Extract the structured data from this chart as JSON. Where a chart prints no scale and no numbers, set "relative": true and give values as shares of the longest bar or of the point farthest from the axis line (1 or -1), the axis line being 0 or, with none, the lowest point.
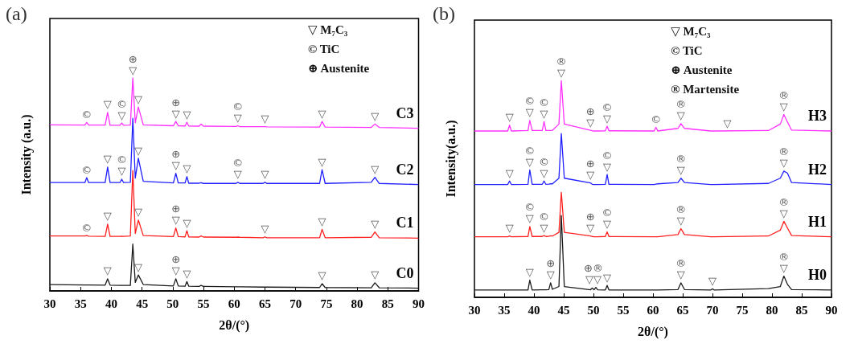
{
  "chart_data": [
    {
      "type": "line",
      "title": "(a)",
      "xlabel": "2θ/(°)",
      "ylabel": "Intensity (a.u.)",
      "relative": true,
      "marker": "none",
      "tick_labels": "x",
      "xlim": [
        30,
        90
      ],
      "xticks": [
        30,
        35,
        40,
        45,
        50,
        55,
        60,
        65,
        70,
        75,
        80,
        85,
        90
      ],
      "x": [
        30,
        35.7,
        36.0,
        36.3,
        39.0,
        39.4,
        39.8,
        41.4,
        41.7,
        42.0,
        43.1,
        43.5,
        43.9,
        44.4,
        45.2,
        50.1,
        50.5,
        50.9,
        52.0,
        52.3,
        52.6,
        54.3,
        54.6,
        55.0,
        60.3,
        60.6,
        60.9,
        64.7,
        65.0,
        65.3,
        73.9,
        74.3,
        74.8,
        82.3,
        82.9,
        83.6,
        90
      ],
      "series": [
        {
          "name": "C0",
          "color": "#1a1a1a",
          "values": [
            0.03,
            0.028,
            0.028,
            0.028,
            0.027,
            0.057,
            0.027,
            0.026,
            0.026,
            0.026,
            0.026,
            0.22,
            0.04,
            0.075,
            0.03,
            0.023,
            0.057,
            0.023,
            0.022,
            0.044,
            0.022,
            0.021,
            0.026,
            0.021,
            0.019,
            0.019,
            0.019,
            0.018,
            0.018,
            0.018,
            0.016,
            0.034,
            0.016,
            0.015,
            0.038,
            0.015,
            0.013
          ]
        },
        {
          "name": "C1",
          "color": "#ff2020",
          "values": [
            0.258,
            0.258,
            0.26,
            0.257,
            0.256,
            0.314,
            0.256,
            0.256,
            0.257,
            0.256,
            0.258,
            0.566,
            0.27,
            0.333,
            0.26,
            0.255,
            0.296,
            0.255,
            0.254,
            0.283,
            0.254,
            0.253,
            0.258,
            0.253,
            0.252,
            0.253,
            0.252,
            0.25,
            0.254,
            0.25,
            0.25,
            0.289,
            0.25,
            0.252,
            0.277,
            0.25,
            0.248
          ]
        },
        {
          "name": "C2",
          "color": "#2020ff",
          "values": [
            0.509,
            0.509,
            0.532,
            0.509,
            0.509,
            0.582,
            0.509,
            0.509,
            0.525,
            0.509,
            0.51,
            0.811,
            0.53,
            0.623,
            0.515,
            0.507,
            0.553,
            0.507,
            0.507,
            0.537,
            0.506,
            0.506,
            0.508,
            0.505,
            0.505,
            0.51,
            0.505,
            0.505,
            0.51,
            0.505,
            0.505,
            0.57,
            0.505,
            0.51,
            0.534,
            0.505,
            0.5
          ]
        },
        {
          "name": "C3",
          "color": "#ff30ff",
          "values": [
            0.78,
            0.779,
            0.792,
            0.779,
            0.779,
            0.839,
            0.778,
            0.778,
            0.789,
            0.778,
            0.779,
            1.0,
            0.79,
            0.864,
            0.78,
            0.776,
            0.796,
            0.776,
            0.775,
            0.792,
            0.775,
            0.774,
            0.784,
            0.774,
            0.773,
            0.776,
            0.772,
            0.772,
            0.772,
            0.771,
            0.77,
            0.796,
            0.77,
            0.768,
            0.784,
            0.768,
            0.764
          ]
        }
      ],
      "annotations": [
        "▽ M₇C₃",
        "© TiC",
        "⊕ Austenite",
        {
          "text": "©",
          "x": 36.0,
          "y": 0.792
        },
        {
          "text": "▽",
          "x": 39.4,
          "y": 0.839
        },
        {
          "text": "©\n▽",
          "x": 41.7,
          "y": 0.789
        },
        {
          "text": "⊕\n▽",
          "x": 43.5,
          "y": 1.0
        },
        {
          "text": "▽",
          "x": 44.4,
          "y": 0.864
        },
        {
          "text": "⊕\n▽",
          "x": 50.5,
          "y": 0.796
        },
        {
          "text": "▽",
          "x": 52.3,
          "y": 0.792
        },
        {
          "text": "©\n▽",
          "x": 60.6,
          "y": 0.776
        },
        {
          "text": "▽",
          "x": 65.0,
          "y": 0.772
        },
        {
          "text": "▽",
          "x": 74.3,
          "y": 0.796
        },
        {
          "text": "▽",
          "x": 82.9,
          "y": 0.784
        },
        {
          "text": "©",
          "x": 36.0,
          "y": 0.532
        },
        {
          "text": "▽",
          "x": 39.4,
          "y": 0.582
        },
        {
          "text": "©\n▽",
          "x": 41.7,
          "y": 0.525
        },
        {
          "text": "▽",
          "x": 44.4,
          "y": 0.623
        },
        {
          "text": "⊕\n▽",
          "x": 50.5,
          "y": 0.553
        },
        {
          "text": "▽",
          "x": 52.3,
          "y": 0.537
        },
        {
          "text": "©\n▽",
          "x": 60.6,
          "y": 0.51
        },
        {
          "text": "▽",
          "x": 65.0,
          "y": 0.51
        },
        {
          "text": "▽",
          "x": 74.3,
          "y": 0.57
        },
        {
          "text": "▽",
          "x": 82.9,
          "y": 0.534
        },
        {
          "text": "©",
          "x": 36.0,
          "y": 0.26
        },
        {
          "text": "▽",
          "x": 39.4,
          "y": 0.314
        },
        {
          "text": "▽",
          "x": 44.4,
          "y": 0.333
        },
        {
          "text": "⊕\n▽",
          "x": 50.5,
          "y": 0.296
        },
        {
          "text": "▽",
          "x": 52.3,
          "y": 0.283
        },
        {
          "text": "▽",
          "x": 65.0,
          "y": 0.254
        },
        {
          "text": "▽",
          "x": 74.3,
          "y": 0.289
        },
        {
          "text": "▽",
          "x": 82.9,
          "y": 0.277
        },
        {
          "text": "▽",
          "x": 39.4,
          "y": 0.057
        },
        {
          "text": "▽",
          "x": 44.4,
          "y": 0.075
        },
        {
          "text": "⊕\n▽",
          "x": 50.5,
          "y": 0.057
        },
        {
          "text": "▽",
          "x": 52.3,
          "y": 0.044
        },
        {
          "text": "▽",
          "x": 74.3,
          "y": 0.034
        },
        {
          "text": "▽",
          "x": 82.9,
          "y": 0.038
        }
      ]
    },
    {
      "type": "line",
      "title": "(b)",
      "xlabel": "2θ/(°)",
      "ylabel": "Intensity(a.u.)",
      "relative": true,
      "marker": "none",
      "tick_labels": "x",
      "xlim": [
        30,
        90
      ],
      "xticks": [
        30,
        35,
        40,
        45,
        50,
        55,
        60,
        65,
        70,
        75,
        80,
        85,
        90
      ],
      "x": [
        30,
        35.6,
        35.9,
        36.2,
        39.0,
        39.3,
        39.7,
        41.4,
        41.7,
        42.0,
        42.5,
        42.8,
        43.1,
        44.2,
        44.6,
        45.1,
        49.5,
        49.8,
        50.1,
        50.4,
        50.7,
        52.0,
        52.3,
        52.6,
        60.2,
        60.5,
        60.8,
        64.2,
        64.7,
        65.3,
        69.7,
        70.0,
        70.3,
        79.4,
        81.4,
        82.0,
        82.6,
        83.3,
        90
      ],
      "series": [
        {
          "name": "H0",
          "color": "#1a1a1a",
          "values": [
            0.034,
            0.034,
            0.034,
            0.034,
            0.034,
            0.079,
            0.034,
            0.035,
            0.035,
            0.035,
            0.036,
            0.067,
            0.037,
            0.05,
            0.378,
            0.05,
            0.035,
            0.043,
            0.035,
            0.046,
            0.035,
            0.034,
            0.055,
            0.034,
            0.034,
            0.034,
            0.034,
            0.036,
            0.067,
            0.036,
            0.034,
            0.039,
            0.034,
            0.04,
            0.05,
            0.098,
            0.06,
            0.036,
            0.034
          ]
        },
        {
          "name": "H1",
          "color": "#ff2020",
          "values": [
            0.28,
            0.28,
            0.283,
            0.28,
            0.281,
            0.327,
            0.281,
            0.281,
            0.285,
            0.281,
            0.282,
            0.284,
            0.283,
            0.3,
            0.485,
            0.3,
            0.283,
            0.281,
            0.28,
            0.28,
            0.28,
            0.281,
            0.302,
            0.281,
            0.28,
            0.28,
            0.28,
            0.29,
            0.317,
            0.29,
            0.28,
            0.28,
            0.28,
            0.283,
            0.31,
            0.351,
            0.32,
            0.285,
            0.28
          ]
        },
        {
          "name": "H2",
          "color": "#2020ff",
          "values": [
            0.521,
            0.521,
            0.537,
            0.521,
            0.522,
            0.588,
            0.522,
            0.522,
            0.537,
            0.522,
            0.523,
            0.524,
            0.524,
            0.55,
            0.756,
            0.55,
            0.528,
            0.522,
            0.521,
            0.521,
            0.521,
            0.522,
            0.567,
            0.522,
            0.521,
            0.523,
            0.524,
            0.53,
            0.55,
            0.53,
            0.521,
            0.521,
            0.521,
            0.526,
            0.55,
            0.583,
            0.573,
            0.53,
            0.521
          ]
        },
        {
          "name": "H3",
          "color": "#ff30ff",
          "values": [
            0.768,
            0.768,
            0.795,
            0.768,
            0.77,
            0.817,
            0.77,
            0.77,
            0.811,
            0.77,
            0.77,
            0.77,
            0.771,
            0.8,
            1.0,
            0.8,
            0.771,
            0.769,
            0.768,
            0.768,
            0.768,
            0.769,
            0.79,
            0.769,
            0.768,
            0.785,
            0.768,
            0.78,
            0.802,
            0.78,
            0.768,
            0.768,
            0.768,
            0.77,
            0.8,
            0.844,
            0.81,
            0.772,
            0.768
          ]
        }
      ],
      "annotations": [
        "▽ M₇C₃",
        "© TiC",
        "⊕ Austenite",
        "® Martensite",
        {
          "text": "▽",
          "x": 35.9,
          "y": 0.795
        },
        {
          "text": "©\n▽",
          "x": 39.3,
          "y": 0.817
        },
        {
          "text": "©\n▽",
          "x": 41.7,
          "y": 0.811
        },
        {
          "text": "®\n▽",
          "x": 44.6,
          "y": 1.0
        },
        {
          "text": "⊕\n▽",
          "x": 49.5,
          "y": 0.771
        },
        {
          "text": "©\n▽",
          "x": 52.3,
          "y": 0.79
        },
        {
          "text": "©",
          "x": 60.5,
          "y": 0.785
        },
        {
          "text": "®\n▽",
          "x": 64.7,
          "y": 0.802
        },
        {
          "text": "▽",
          "x": 72.5,
          "y": 0.768
        },
        {
          "text": "®\n▽",
          "x": 82.0,
          "y": 0.844
        },
        {
          "text": "▽",
          "x": 35.9,
          "y": 0.537
        },
        {
          "text": "©\n▽",
          "x": 39.3,
          "y": 0.588
        },
        {
          "text": "©\n▽",
          "x": 41.7,
          "y": 0.537
        },
        {
          "text": "⊕\n▽",
          "x": 49.5,
          "y": 0.528
        },
        {
          "text": "©\n▽",
          "x": 52.3,
          "y": 0.567
        },
        {
          "text": "®\n▽",
          "x": 64.7,
          "y": 0.55
        },
        {
          "text": "®\n▽",
          "x": 82.0,
          "y": 0.583
        },
        {
          "text": "▽",
          "x": 35.9,
          "y": 0.283
        },
        {
          "text": "©\n▽",
          "x": 39.3,
          "y": 0.327
        },
        {
          "text": "©\n▽",
          "x": 41.7,
          "y": 0.285
        },
        {
          "text": "⊕\n▽",
          "x": 49.5,
          "y": 0.283
        },
        {
          "text": "©\n▽",
          "x": 52.3,
          "y": 0.302
        },
        {
          "text": "®\n▽",
          "x": 64.7,
          "y": 0.317
        },
        {
          "text": "®\n▽",
          "x": 82.0,
          "y": 0.351
        },
        {
          "text": "▽",
          "x": 39.3,
          "y": 0.079
        },
        {
          "text": "⊕\n▽",
          "x": 42.8,
          "y": 0.067
        },
        {
          "text": "⊕®\n▽▽",
          "x": 50.0,
          "y": 0.046
        },
        {
          "text": "▽",
          "x": 52.3,
          "y": 0.055
        },
        {
          "text": "®\n▽",
          "x": 64.7,
          "y": 0.067
        },
        {
          "text": "▽",
          "x": 70.0,
          "y": 0.039
        },
        {
          "text": "®\n▽",
          "x": 82.0,
          "y": 0.098
        }
      ]
    }
  ]
}
